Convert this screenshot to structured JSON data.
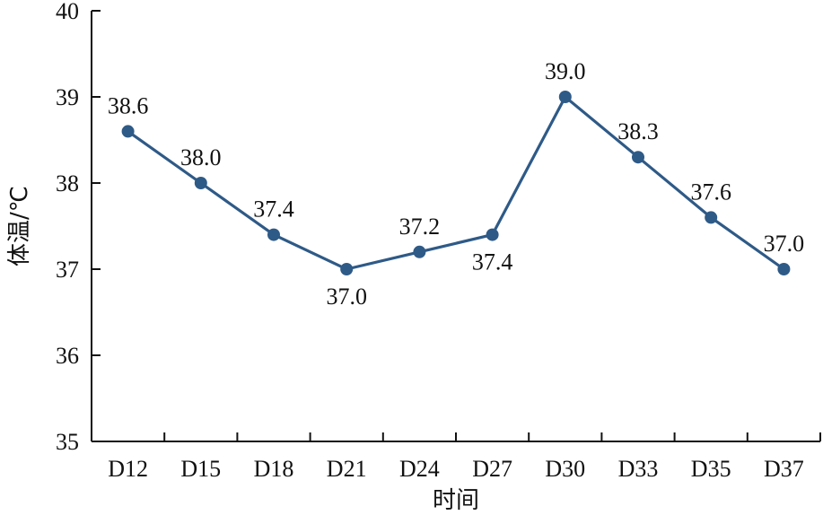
{
  "chart_data": {
    "type": "line",
    "categories": [
      "D12",
      "D15",
      "D18",
      "D21",
      "D24",
      "D27",
      "D30",
      "D33",
      "D35",
      "D37"
    ],
    "values": [
      38.6,
      38.0,
      37.4,
      37.0,
      37.2,
      37.4,
      39.0,
      38.3,
      37.6,
      37.0
    ],
    "data_labels": [
      "38.6",
      "38.0",
      "37.4",
      "37.0",
      "37.2",
      "37.4",
      "39.0",
      "38.3",
      "37.6",
      "37.0"
    ],
    "label_positions": [
      "above",
      "above",
      "above",
      "below",
      "above",
      "below",
      "above",
      "above",
      "above",
      "above"
    ],
    "xlabel": "时间",
    "ylabel": "体温/℃",
    "ylim": [
      35,
      40
    ],
    "yticks": [
      "35",
      "36",
      "37",
      "38",
      "39",
      "40"
    ],
    "grid": false,
    "color": "#2e5a87"
  }
}
